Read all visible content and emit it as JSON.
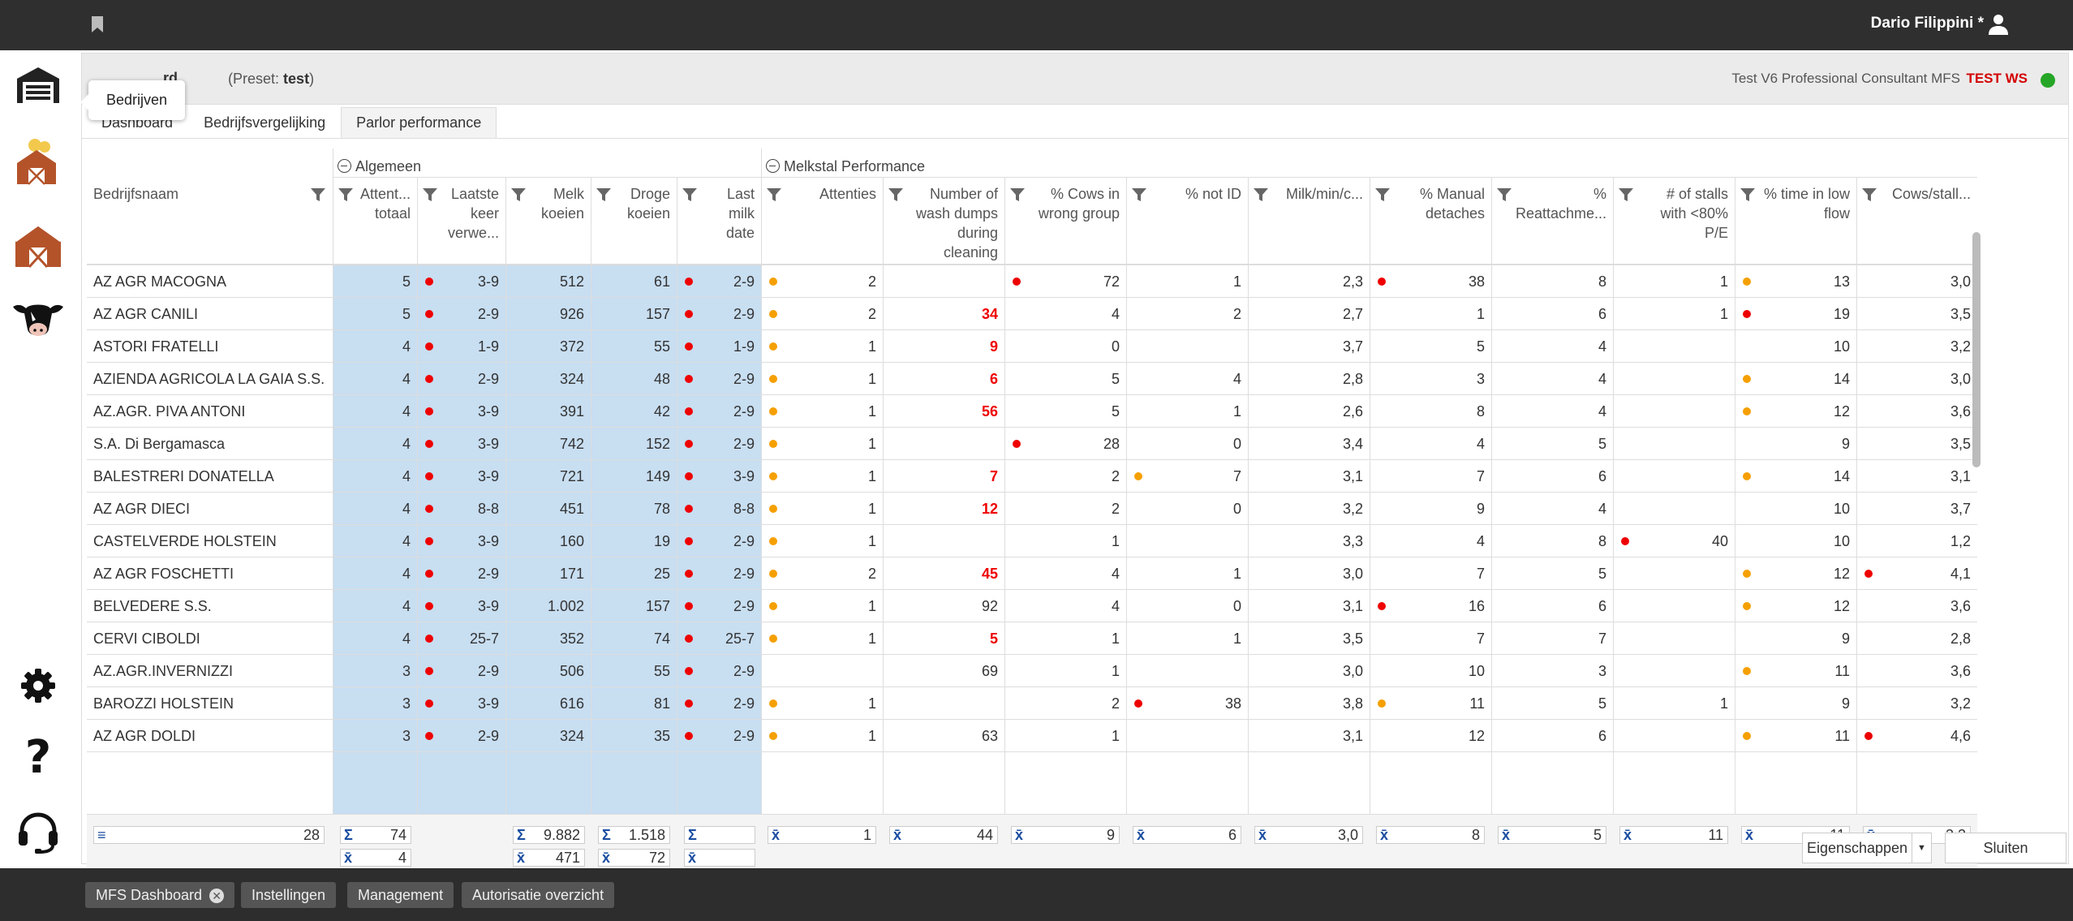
{
  "user": {
    "name": "Dario Filippini *"
  },
  "tooltip": "Bedrijven",
  "page": {
    "title": "rd",
    "preset_label": "(Preset:",
    "preset_value": "test",
    "preset_close": ")",
    "consultant": "Test V6 Professional Consultant MFS",
    "env": "TEST WS",
    "status_color": "#26a626"
  },
  "tabs": [
    "Dashboard",
    "Bedrijfsvergelijking",
    "Parlor performance"
  ],
  "groups": {
    "algemeen": "Algemeen",
    "melkstal": "Melkstal Performance"
  },
  "columns": [
    "Bedrijfsnaam",
    "Attent... totaal",
    "Laatste keer verwe...",
    "Melk koeien",
    "Droge koeien",
    "Last milk date",
    "Attenties",
    "Number of wash dumps during cleaning",
    "% Cows in wrong group",
    "% not ID",
    "Milk/min/c...",
    "% Manual detaches",
    "% Reattachme...",
    "# of stalls with <80% P/E",
    "% time in low flow",
    "Cows/stall..."
  ],
  "rows": [
    {
      "name": "AZ AGR MACOGNA",
      "att": "5",
      "last": "3-9",
      "melk": "512",
      "droge": "61",
      "date": "2-9",
      "attenties": "2",
      "wash": "",
      "wrong": "72",
      "notid": "1",
      "mmc": "2,3",
      "manual": "38",
      "reatt": "8",
      "stalls": "1",
      "low": "13",
      "cows": "3,0"
    },
    {
      "name": "AZ AGR CANILI",
      "att": "5",
      "last": "2-9",
      "melk": "926",
      "droge": "157",
      "date": "2-9",
      "attenties": "2",
      "wash": "34",
      "wrong": "4",
      "notid": "2",
      "mmc": "2,7",
      "manual": "1",
      "reatt": "6",
      "stalls": "1",
      "low": "19",
      "cows": "3,5"
    },
    {
      "name": "ASTORI FRATELLI",
      "att": "4",
      "last": "1-9",
      "melk": "372",
      "droge": "55",
      "date": "1-9",
      "attenties": "1",
      "wash": "9",
      "wrong": "0",
      "notid": "",
      "mmc": "3,7",
      "manual": "5",
      "reatt": "4",
      "stalls": "",
      "low": "10",
      "cows": "3,2"
    },
    {
      "name": "AZIENDA AGRICOLA LA GAIA S.S.",
      "att": "4",
      "last": "2-9",
      "melk": "324",
      "droge": "48",
      "date": "2-9",
      "attenties": "1",
      "wash": "6",
      "wrong": "5",
      "notid": "4",
      "mmc": "2,8",
      "manual": "3",
      "reatt": "4",
      "stalls": "",
      "low": "14",
      "cows": "3,0"
    },
    {
      "name": "AZ.AGR. PIVA ANTONI",
      "att": "4",
      "last": "3-9",
      "melk": "391",
      "droge": "42",
      "date": "2-9",
      "attenties": "1",
      "wash": "56",
      "wrong": "5",
      "notid": "1",
      "mmc": "2,6",
      "manual": "8",
      "reatt": "4",
      "stalls": "",
      "low": "12",
      "cows": "3,6"
    },
    {
      "name": "S.A. Di Bergamasca",
      "att": "4",
      "last": "3-9",
      "melk": "742",
      "droge": "152",
      "date": "2-9",
      "attenties": "1",
      "wash": "",
      "wrong": "28",
      "notid": "0",
      "mmc": "3,4",
      "manual": "4",
      "reatt": "5",
      "stalls": "",
      "low": "9",
      "cows": "3,5"
    },
    {
      "name": "BALESTRERI DONATELLA",
      "att": "4",
      "last": "3-9",
      "melk": "721",
      "droge": "149",
      "date": "3-9",
      "attenties": "1",
      "wash": "7",
      "wrong": "2",
      "notid": "7",
      "mmc": "3,1",
      "manual": "7",
      "reatt": "6",
      "stalls": "",
      "low": "14",
      "cows": "3,1"
    },
    {
      "name": "AZ AGR DIECI",
      "att": "4",
      "last": "8-8",
      "melk": "451",
      "droge": "78",
      "date": "8-8",
      "attenties": "1",
      "wash": "12",
      "wrong": "2",
      "notid": "0",
      "mmc": "3,2",
      "manual": "9",
      "reatt": "4",
      "stalls": "",
      "low": "10",
      "cows": "3,7"
    },
    {
      "name": "CASTELVERDE HOLSTEIN",
      "att": "4",
      "last": "3-9",
      "melk": "160",
      "droge": "19",
      "date": "2-9",
      "attenties": "1",
      "wash": "",
      "wrong": "1",
      "notid": "",
      "mmc": "3,3",
      "manual": "4",
      "reatt": "8",
      "stalls": "40",
      "low": "10",
      "cows": "1,2"
    },
    {
      "name": "AZ AGR FOSCHETTI",
      "att": "4",
      "last": "2-9",
      "melk": "171",
      "droge": "25",
      "date": "2-9",
      "attenties": "2",
      "wash": "45",
      "wrong": "4",
      "notid": "1",
      "mmc": "3,0",
      "manual": "7",
      "reatt": "5",
      "stalls": "",
      "low": "12",
      "cows": "4,1"
    },
    {
      "name": "BELVEDERE S.S.",
      "att": "4",
      "last": "3-9",
      "melk": "1.002",
      "droge": "157",
      "date": "2-9",
      "attenties": "1",
      "wash": "92",
      "wrong": "4",
      "notid": "0",
      "mmc": "3,1",
      "manual": "16",
      "reatt": "6",
      "stalls": "",
      "low": "12",
      "cows": "3,6"
    },
    {
      "name": "CERVI CIBOLDI",
      "att": "4",
      "last": "25-7",
      "melk": "352",
      "droge": "74",
      "date": "25-7",
      "attenties": "1",
      "wash": "5",
      "wrong": "1",
      "notid": "1",
      "mmc": "3,5",
      "manual": "7",
      "reatt": "7",
      "stalls": "",
      "low": "9",
      "cows": "2,8"
    },
    {
      "name": "AZ.AGR.INVERNIZZI",
      "att": "3",
      "last": "2-9",
      "melk": "506",
      "droge": "55",
      "date": "2-9",
      "attenties": "",
      "wash": "69",
      "wrong": "1",
      "notid": "",
      "mmc": "3,0",
      "manual": "10",
      "reatt": "3",
      "stalls": "",
      "low": "11",
      "cows": "3,6"
    },
    {
      "name": "BAROZZI HOLSTEIN",
      "att": "3",
      "last": "3-9",
      "melk": "616",
      "droge": "81",
      "date": "2-9",
      "attenties": "1",
      "wash": "",
      "wrong": "2",
      "notid": "38",
      "mmc": "3,8",
      "manual": "11",
      "reatt": "5",
      "stalls": "1",
      "low": "9",
      "cows": "3,2"
    },
    {
      "name": "AZ AGR DOLDI",
      "att": "3",
      "last": "2-9",
      "melk": "324",
      "droge": "35",
      "date": "2-9",
      "attenties": "1",
      "wash": "63",
      "wrong": "1",
      "notid": "",
      "mmc": "3,1",
      "manual": "12",
      "reatt": "6",
      "stalls": "",
      "low": "11",
      "cows": "4,6"
    }
  ],
  "red_wash": [
    "34",
    "9",
    "6",
    "56",
    "7",
    "12",
    "45",
    "5"
  ],
  "footer": {
    "count": "28",
    "att_sum": "74",
    "att_avg": "4",
    "melk_sum": "9.882",
    "melk_avg": "471",
    "droge_sum": "1.518",
    "droge_avg": "72",
    "attenties": "1",
    "wash": "44",
    "wrong": "9",
    "notid": "6",
    "mmc": "3,0",
    "manual": "8",
    "reatt": "5",
    "stalls": "11",
    "low": "11",
    "cows": "3,2"
  },
  "buttons": {
    "props": "Eigenschappen",
    "close": "Sluiten"
  },
  "bottom_tabs": [
    "MFS Dashboard",
    "Instellingen",
    "Management",
    "Autorisatie overzicht"
  ]
}
